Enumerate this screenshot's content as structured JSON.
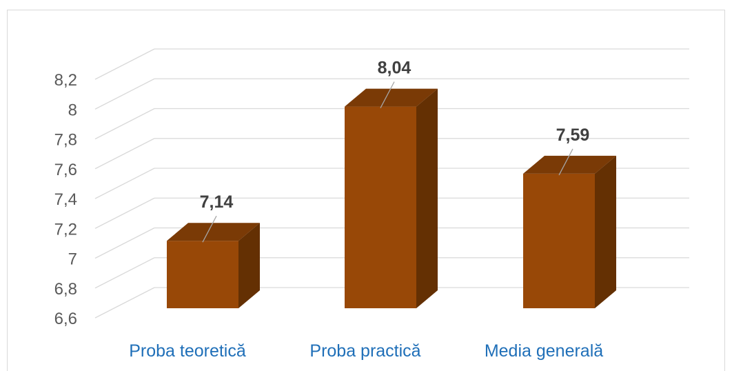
{
  "chart_data": {
    "type": "bar",
    "style": "3d-column",
    "title": "",
    "xlabel": "",
    "ylabel": "",
    "categories": [
      "Proba teoretică",
      "Proba practică",
      "Media generală"
    ],
    "values": [
      7.14,
      8.04,
      7.59
    ],
    "value_labels": [
      "7,14",
      "8,04",
      "7,59"
    ],
    "ylim": [
      6.6,
      8.2
    ],
    "yticks": [
      "6,6",
      "6,8",
      "7",
      "7,2",
      "7,4",
      "7,6",
      "7,8",
      "8",
      "8,2"
    ],
    "grid": true,
    "legend": "none",
    "colors": {
      "bar_front": "#984807",
      "bar_top": "#7a3a06",
      "bar_side": "#643003",
      "category_label": "#1f6fb8",
      "tick_label": "#595959",
      "data_label": "#404040",
      "gridline": "#d9d9d9"
    }
  }
}
